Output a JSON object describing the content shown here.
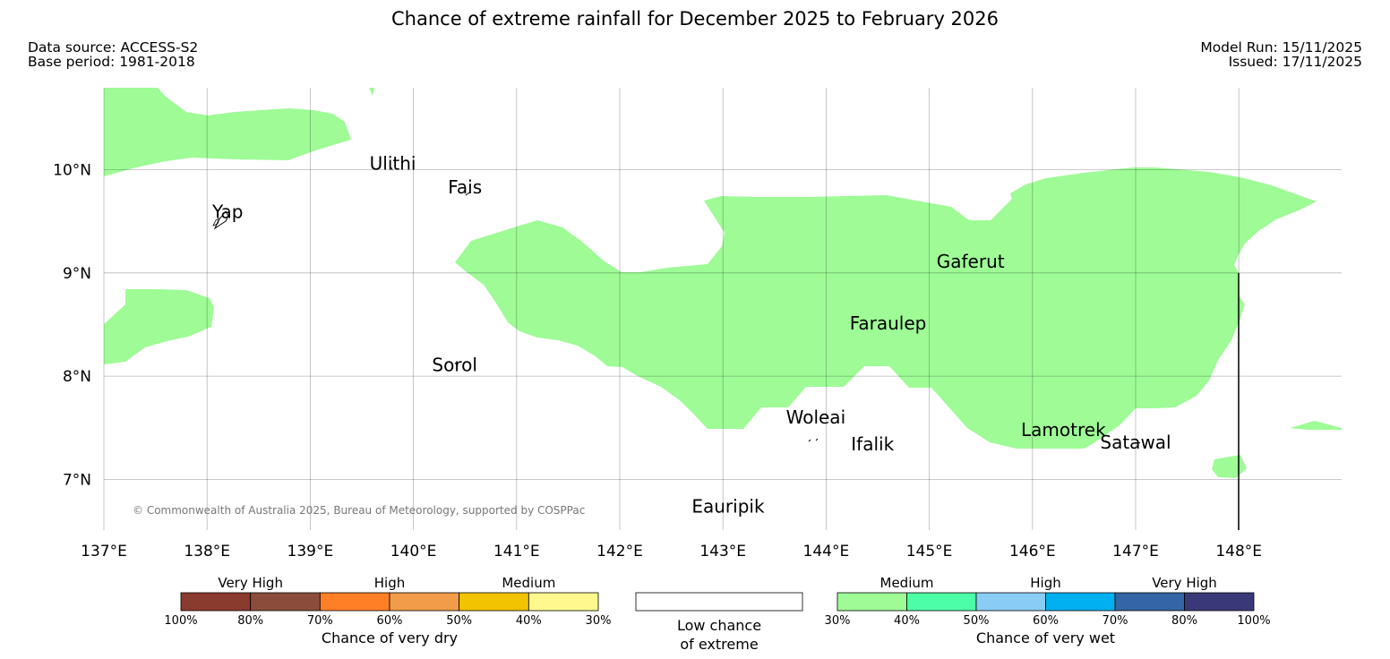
{
  "title": "Chance of extreme rainfall for December 2025 to February 2026",
  "meta": {
    "data_source": "Data source: ACCESS-S2",
    "base_period": "Base period: 1981-2018",
    "model_run": "Model Run: 15/11/2025",
    "issued": "Issued: 17/11/2025"
  },
  "map": {
    "lon_range": [
      137,
      149
    ],
    "lat_range": [
      6.5,
      10.8
    ],
    "x_ticks": [
      "137°E",
      "138°E",
      "139°E",
      "140°E",
      "141°E",
      "142°E",
      "143°E",
      "144°E",
      "145°E",
      "146°E",
      "147°E",
      "148°E"
    ],
    "y_ticks": [
      "10°N",
      "9°N",
      "8°N",
      "7°N"
    ],
    "copyright": "© Commonwealth of Australia 2025, Bureau of Meteorology, supported by COSPPac",
    "places": [
      {
        "name": "Ulithi",
        "lon": 139.8,
        "lat": 10.0
      },
      {
        "name": "Fais",
        "lon": 140.5,
        "lat": 9.77
      },
      {
        "name": "Yap",
        "lon": 138.2,
        "lat": 9.53
      },
      {
        "name": "Gaferut",
        "lon": 145.4,
        "lat": 9.05
      },
      {
        "name": "Faraulep",
        "lon": 144.6,
        "lat": 8.45
      },
      {
        "name": "Sorol",
        "lon": 140.4,
        "lat": 8.05
      },
      {
        "name": "Woleai",
        "lon": 143.9,
        "lat": 7.54
      },
      {
        "name": "Ifalik",
        "lon": 144.45,
        "lat": 7.28
      },
      {
        "name": "Lamotrek",
        "lon": 146.3,
        "lat": 7.42
      },
      {
        "name": "Satawal",
        "lon": 147.0,
        "lat": 7.3
      },
      {
        "name": "Eauripik",
        "lon": 143.05,
        "lat": 6.68
      }
    ],
    "region_color": "#9efb96"
  },
  "legend": {
    "dry": {
      "categories": [
        "Very High",
        "High",
        "Medium"
      ],
      "colors": [
        "#8b3a2e",
        "#8c4c3c",
        "#ff7f27",
        "#f09c48",
        "#f2c300",
        "#fff88e"
      ],
      "ticks": [
        "100%",
        "80%",
        "70%",
        "60%",
        "50%",
        "40%",
        "30%"
      ],
      "title": "Chance of very dry"
    },
    "neutral": {
      "line1": "Low chance",
      "line2": "of extreme"
    },
    "wet": {
      "categories": [
        "Medium",
        "High",
        "Very High"
      ],
      "colors": [
        "#9efb96",
        "#4cffa6",
        "#89cdf5",
        "#00b0f0",
        "#3465a4",
        "#3a3978"
      ],
      "ticks": [
        "30%",
        "40%",
        "50%",
        "60%",
        "70%",
        "80%",
        "100%"
      ],
      "title": "Chance of very wet"
    }
  }
}
